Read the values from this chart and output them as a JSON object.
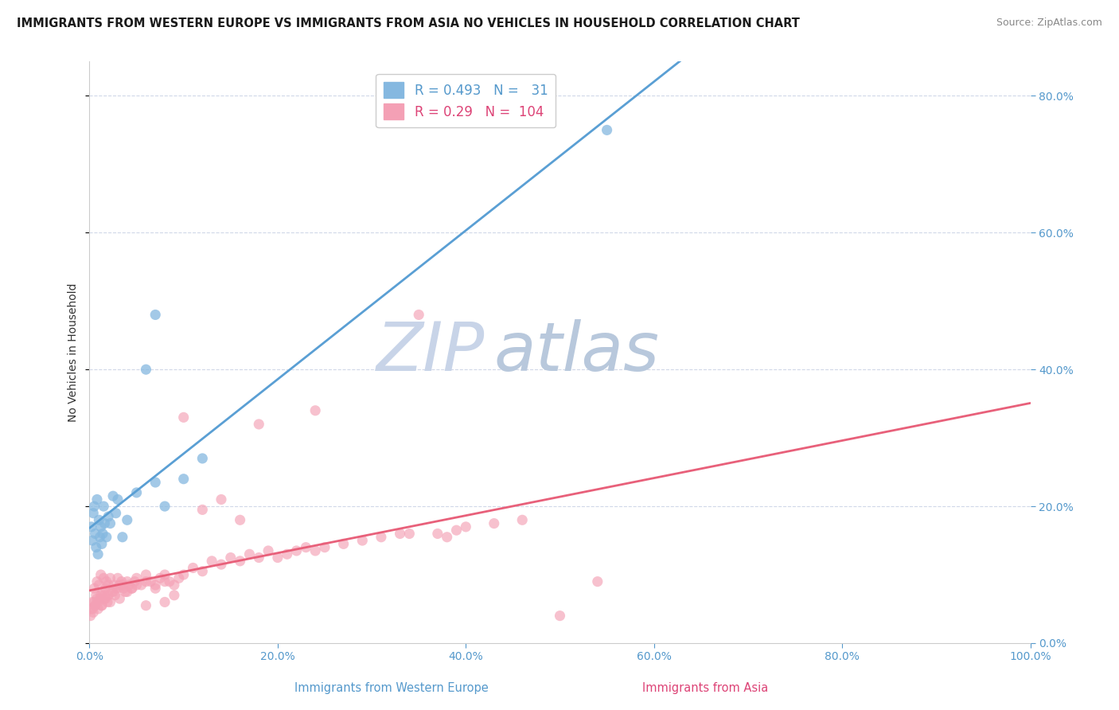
{
  "title": "IMMIGRANTS FROM WESTERN EUROPE VS IMMIGRANTS FROM ASIA NO VEHICLES IN HOUSEHOLD CORRELATION CHART",
  "source": "Source: ZipAtlas.com",
  "ylabel": "No Vehicles in Household",
  "xlabel_blue": "Immigrants from Western Europe",
  "xlabel_pink": "Immigrants from Asia",
  "watermark_zip": "ZIP",
  "watermark_atlas": "atlas",
  "R_blue": 0.493,
  "N_blue": 31,
  "R_pink": 0.29,
  "N_pink": 104,
  "color_blue": "#85b8e0",
  "color_pink": "#f4a0b5",
  "color_blue_line": "#5a9fd4",
  "color_pink_line": "#e8607a",
  "color_blue_text": "#5599cc",
  "color_pink_text": "#dd4477",
  "xlim": [
    0,
    1.0
  ],
  "ylim": [
    0,
    0.85
  ],
  "blue_points_x": [
    0.002,
    0.003,
    0.004,
    0.005,
    0.006,
    0.007,
    0.008,
    0.009,
    0.01,
    0.011,
    0.012,
    0.013,
    0.014,
    0.015,
    0.016,
    0.018,
    0.02,
    0.022,
    0.025,
    0.028,
    0.03,
    0.035,
    0.04,
    0.05,
    0.06,
    0.07,
    0.08,
    0.1,
    0.12,
    0.55,
    0.07
  ],
  "blue_points_y": [
    0.17,
    0.15,
    0.19,
    0.2,
    0.16,
    0.14,
    0.21,
    0.13,
    0.18,
    0.155,
    0.17,
    0.145,
    0.16,
    0.2,
    0.175,
    0.155,
    0.185,
    0.175,
    0.215,
    0.19,
    0.21,
    0.155,
    0.18,
    0.22,
    0.4,
    0.235,
    0.2,
    0.24,
    0.27,
    0.75,
    0.48
  ],
  "pink_points_x": [
    0.001,
    0.002,
    0.003,
    0.004,
    0.005,
    0.006,
    0.007,
    0.008,
    0.009,
    0.01,
    0.011,
    0.012,
    0.013,
    0.014,
    0.015,
    0.016,
    0.017,
    0.018,
    0.019,
    0.02,
    0.022,
    0.024,
    0.026,
    0.028,
    0.03,
    0.032,
    0.034,
    0.036,
    0.038,
    0.04,
    0.042,
    0.045,
    0.048,
    0.05,
    0.055,
    0.06,
    0.065,
    0.07,
    0.075,
    0.08,
    0.085,
    0.09,
    0.095,
    0.1,
    0.11,
    0.12,
    0.13,
    0.14,
    0.15,
    0.16,
    0.17,
    0.18,
    0.19,
    0.2,
    0.21,
    0.22,
    0.23,
    0.24,
    0.25,
    0.27,
    0.29,
    0.31,
    0.33,
    0.35,
    0.37,
    0.38,
    0.39,
    0.4,
    0.43,
    0.46,
    0.005,
    0.008,
    0.012,
    0.016,
    0.02,
    0.025,
    0.03,
    0.035,
    0.04,
    0.045,
    0.05,
    0.06,
    0.07,
    0.08,
    0.09,
    0.1,
    0.12,
    0.14,
    0.16,
    0.18,
    0.003,
    0.006,
    0.009,
    0.013,
    0.017,
    0.022,
    0.027,
    0.032,
    0.06,
    0.08,
    0.5,
    0.24,
    0.34,
    0.54
  ],
  "pink_points_y": [
    0.04,
    0.05,
    0.06,
    0.045,
    0.08,
    0.055,
    0.07,
    0.09,
    0.05,
    0.085,
    0.065,
    0.1,
    0.055,
    0.075,
    0.095,
    0.07,
    0.08,
    0.09,
    0.06,
    0.085,
    0.095,
    0.075,
    0.085,
    0.08,
    0.095,
    0.085,
    0.09,
    0.08,
    0.075,
    0.09,
    0.085,
    0.08,
    0.09,
    0.095,
    0.085,
    0.1,
    0.09,
    0.08,
    0.095,
    0.1,
    0.09,
    0.085,
    0.095,
    0.1,
    0.11,
    0.105,
    0.12,
    0.115,
    0.125,
    0.12,
    0.13,
    0.125,
    0.135,
    0.125,
    0.13,
    0.135,
    0.14,
    0.135,
    0.14,
    0.145,
    0.15,
    0.155,
    0.16,
    0.48,
    0.16,
    0.155,
    0.165,
    0.17,
    0.175,
    0.18,
    0.06,
    0.065,
    0.07,
    0.065,
    0.07,
    0.075,
    0.08,
    0.085,
    0.075,
    0.08,
    0.085,
    0.09,
    0.085,
    0.09,
    0.07,
    0.33,
    0.195,
    0.21,
    0.18,
    0.32,
    0.05,
    0.055,
    0.06,
    0.055,
    0.065,
    0.06,
    0.07,
    0.065,
    0.055,
    0.06,
    0.04,
    0.34,
    0.16,
    0.09
  ],
  "bg_color": "#ffffff",
  "grid_color": "#d0d8e8",
  "title_fontsize": 10.5,
  "source_fontsize": 9,
  "watermark_color_zip": "#c8d4e8",
  "watermark_color_atlas": "#b8c8dc",
  "watermark_fontsize": 62,
  "tick_color": "#5599cc",
  "legend_text_color_blue": "#5599cc",
  "legend_text_color_pink": "#dd4477"
}
